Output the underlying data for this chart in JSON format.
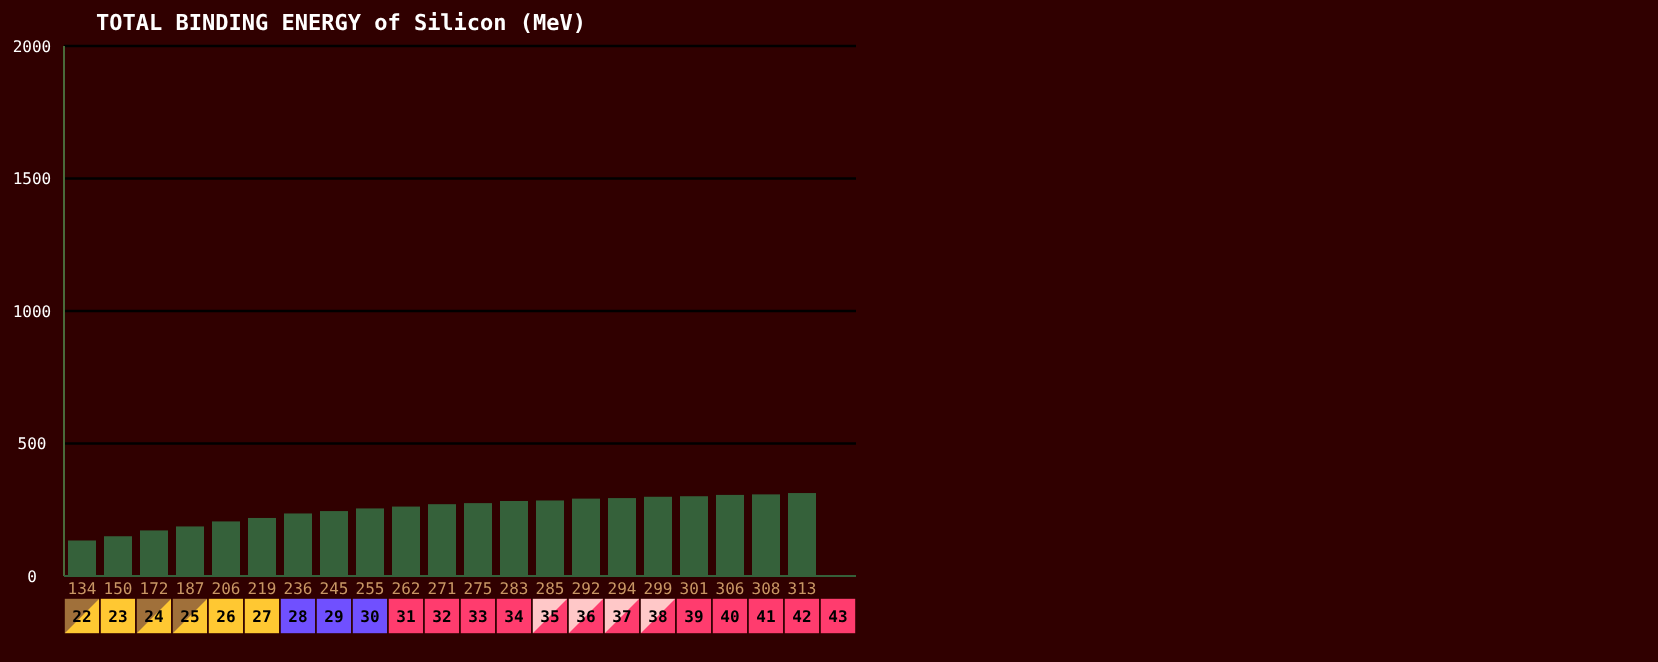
{
  "chart_data": {
    "type": "bar",
    "title": "TOTAL BINDING ENERGY of Silicon (MeV)",
    "categories": [
      "22",
      "23",
      "24",
      "25",
      "26",
      "27",
      "28",
      "29",
      "30",
      "31",
      "32",
      "33",
      "34",
      "35",
      "36",
      "37",
      "38",
      "39",
      "40",
      "41",
      "42",
      "43"
    ],
    "values": [
      134,
      150,
      172,
      187,
      206,
      219,
      236,
      245,
      255,
      262,
      271,
      275,
      283,
      285,
      292,
      294,
      299,
      301,
      306,
      308,
      313,
      null
    ],
    "color": "#35613a",
    "ylim": [
      0,
      2000
    ],
    "yticks": [
      0,
      500,
      1000,
      1500,
      2000
    ],
    "grid": "y",
    "data_labels": true
  }
}
